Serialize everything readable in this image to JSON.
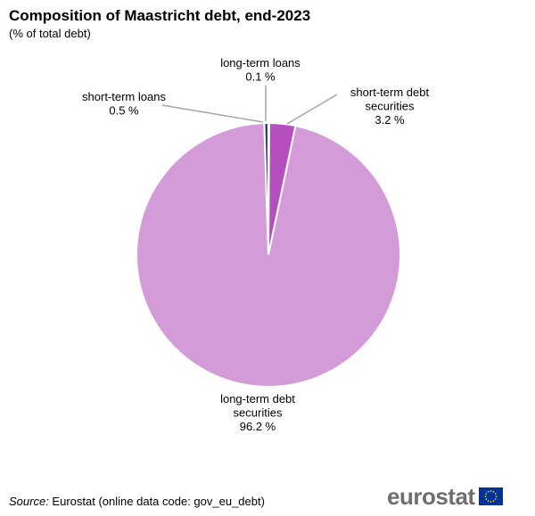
{
  "header": {
    "title": "Composition of Maastricht debt, end-2023",
    "subtitle": "(% of total debt)"
  },
  "chart_data": {
    "type": "pie",
    "title": "Composition of Maastricht debt, end-2023",
    "subtitle": "(% of total debt)",
    "unit": "%",
    "slices": [
      {
        "name": "long-term loans",
        "label_lines": [
          "long-term loans",
          "0.1 %"
        ],
        "value": 0.1,
        "color": "#1f3a6e"
      },
      {
        "name": "short-term debt securities",
        "label_lines": [
          "short-term debt",
          "securities",
          "3.2 %"
        ],
        "value": 3.2,
        "color": "#b54fbf"
      },
      {
        "name": "long-term debt securities",
        "label_lines": [
          "long-term debt",
          "securities",
          "96.2 %"
        ],
        "value": 96.2,
        "color": "#d39bd8"
      },
      {
        "name": "short-term loans",
        "label_lines": [
          "short-term loans",
          "0.5 %"
        ],
        "value": 0.5,
        "color": "#2a3f8f"
      }
    ],
    "start_angle": "12 o'clock",
    "direction": "clockwise",
    "legend": "none"
  },
  "footer": {
    "source_key": "Source:",
    "source_value": " Eurostat (online data code: gov_eu_debt)",
    "logo_text": "eurostat"
  },
  "colors": {
    "leader_line": "#a6a6a6",
    "logo_text": "#6f6f6f",
    "flag_blue": "#003399",
    "flag_star": "#ffcc00"
  },
  "icons": {
    "logo_flag": "eu-flag-icon"
  }
}
